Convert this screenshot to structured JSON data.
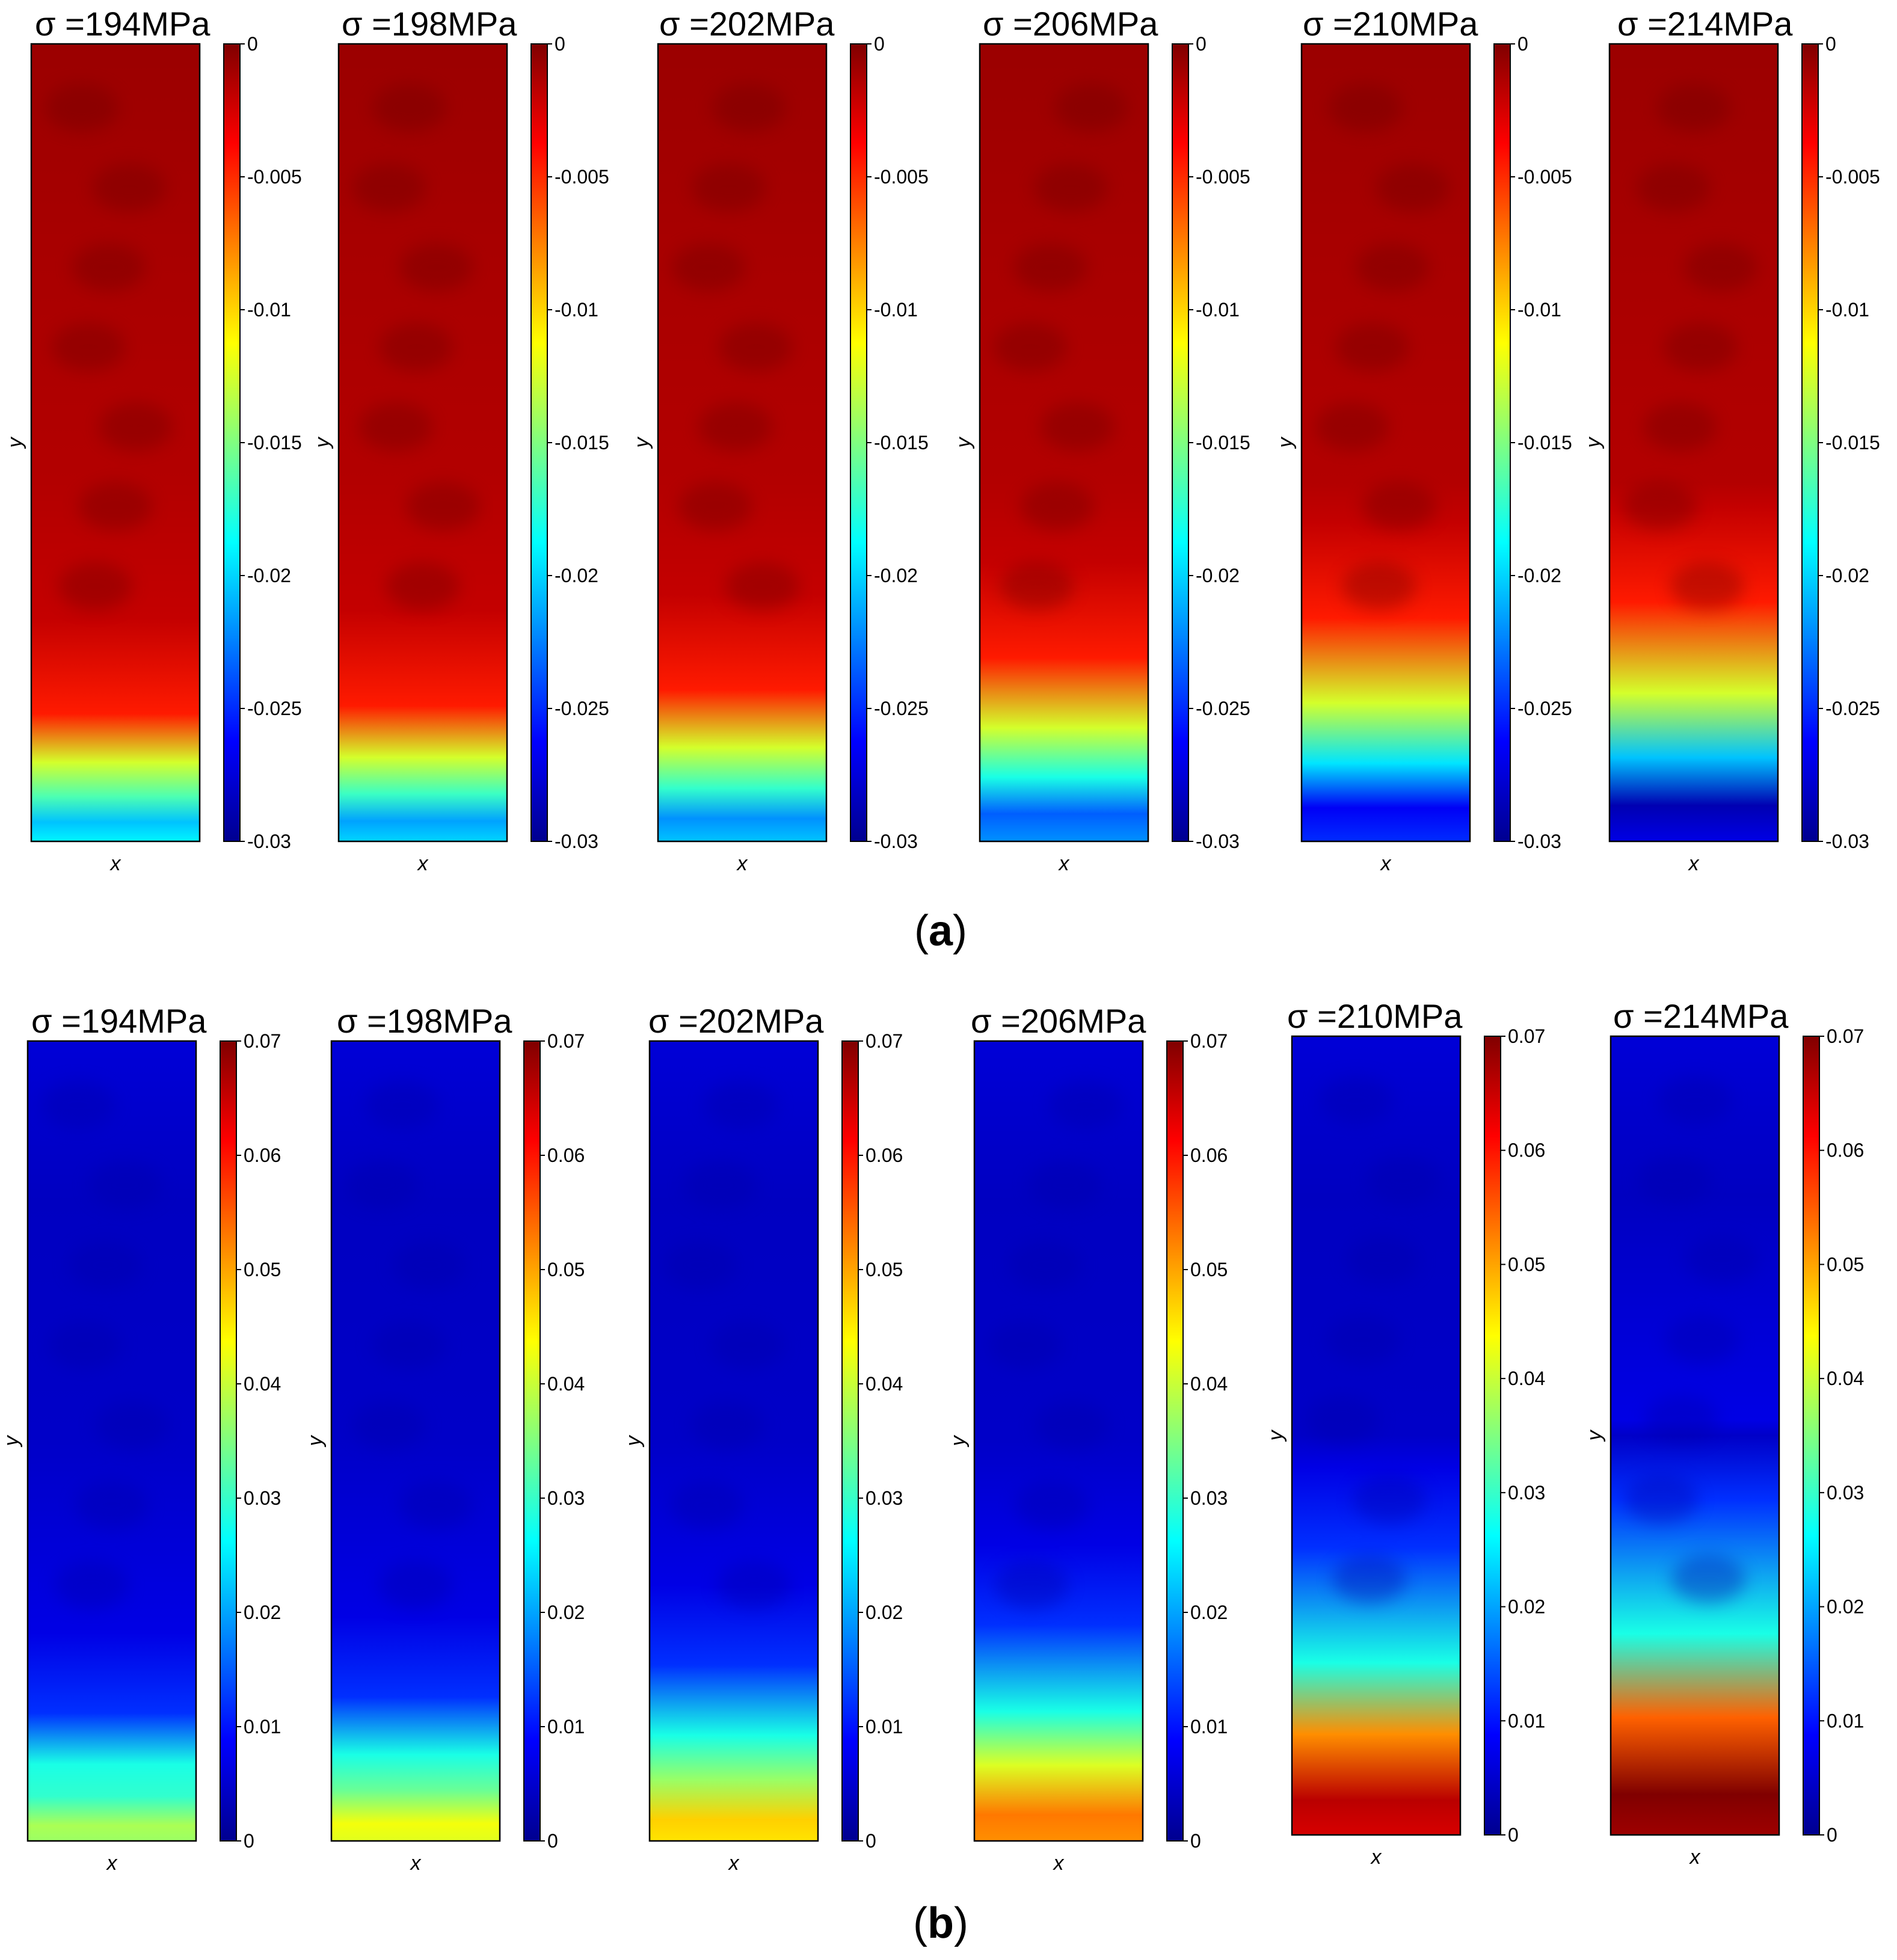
{
  "chart_data": [
    {
      "type": "heatmap",
      "panel": "(a)",
      "panel_letter": "a",
      "colormap": "jet",
      "clim": [
        -0.03,
        0
      ],
      "colorbar_ticks": [
        0,
        -0.005,
        -0.01,
        -0.015,
        -0.02,
        -0.025,
        -0.03
      ],
      "colorbar_tick_labels": [
        "0",
        "-0.005",
        "-0.01",
        "-0.015",
        "-0.02",
        "-0.025",
        "-0.03"
      ],
      "xlabel": "x",
      "ylabel": "y",
      "maps": [
        {
          "title": "σ =194MPa",
          "stress": 194,
          "bottom_front_value": -0.0125,
          "front_depth": 0.16,
          "bottom_min_value": -0.0205
        },
        {
          "title": "σ =198MPa",
          "stress": 198,
          "bottom_front_value": -0.0125,
          "front_depth": 0.17,
          "bottom_min_value": -0.0215
        },
        {
          "title": "σ =202MPa",
          "stress": 202,
          "bottom_front_value": -0.0125,
          "front_depth": 0.19,
          "bottom_min_value": -0.022
        },
        {
          "title": "σ =206MPa",
          "stress": 206,
          "bottom_front_value": -0.0125,
          "front_depth": 0.23,
          "bottom_min_value": -0.0235
        },
        {
          "title": "σ =210MPa",
          "stress": 210,
          "bottom_front_value": -0.0125,
          "front_depth": 0.28,
          "bottom_min_value": -0.0265
        },
        {
          "title": "σ =214MPa",
          "stress": 214,
          "bottom_front_value": -0.0125,
          "front_depth": 0.3,
          "bottom_min_value": -0.0285
        }
      ]
    },
    {
      "type": "heatmap",
      "panel": "(b)",
      "panel_letter": "b",
      "colormap": "jet",
      "clim": [
        0,
        0.07
      ],
      "colorbar_ticks": [
        0.07,
        0.06,
        0.05,
        0.04,
        0.03,
        0.02,
        0.01,
        0
      ],
      "colorbar_tick_labels": [
        "0.07",
        "0.06",
        "0.05",
        "0.04",
        "0.03",
        "0.02",
        "0.01",
        "0"
      ],
      "xlabel": "x",
      "ylabel": "y",
      "maps": [
        {
          "title": "σ =194MPa",
          "stress": 194,
          "bottom_max_value": 0.038,
          "front_depth": 0.16
        },
        {
          "title": "σ =198MPa",
          "stress": 198,
          "bottom_max_value": 0.043,
          "front_depth": 0.18
        },
        {
          "title": "σ =202MPa",
          "stress": 202,
          "bottom_max_value": 0.047,
          "front_depth": 0.22
        },
        {
          "title": "σ =206MPa",
          "stress": 206,
          "bottom_max_value": 0.053,
          "front_depth": 0.27
        },
        {
          "title": "σ =210MPa",
          "stress": 210,
          "bottom_max_value": 0.066,
          "front_depth": 0.36
        },
        {
          "title": "σ =214MPa",
          "stress": 214,
          "bottom_max_value": 0.07,
          "front_depth": 0.42
        }
      ]
    }
  ]
}
